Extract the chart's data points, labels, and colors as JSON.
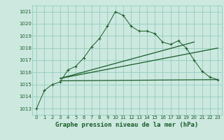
{
  "title": "Graphe pression niveau de la mer (hPa)",
  "bg_color": "#cce8df",
  "grid_color": "#88c8b8",
  "line_color": "#1a5c28",
  "xlim": [
    -0.5,
    23.5
  ],
  "ylim": [
    1012.5,
    1021.5
  ],
  "yticks": [
    1013,
    1014,
    1015,
    1016,
    1017,
    1018,
    1019,
    1020,
    1021
  ],
  "xticks": [
    0,
    1,
    2,
    3,
    4,
    5,
    6,
    7,
    8,
    9,
    10,
    11,
    12,
    13,
    14,
    15,
    16,
    17,
    18,
    19,
    20,
    21,
    22,
    23
  ],
  "line1_x": [
    0,
    1,
    2,
    3,
    4,
    5,
    6,
    7,
    8,
    9,
    10,
    11,
    12,
    13,
    14,
    15,
    16,
    17,
    18,
    19,
    20,
    21,
    22,
    23
  ],
  "line1_y": [
    1013.0,
    1014.5,
    1015.0,
    1015.2,
    1016.2,
    1016.5,
    1017.2,
    1018.1,
    1018.8,
    1019.8,
    1021.0,
    1020.7,
    1019.8,
    1019.4,
    1019.4,
    1019.2,
    1018.5,
    1018.3,
    1018.6,
    1018.0,
    1017.0,
    1016.1,
    1015.6,
    1015.4
  ],
  "line2_x": [
    3,
    23
  ],
  "line2_y": [
    1015.5,
    1018.0
  ],
  "line3_x": [
    3,
    20
  ],
  "line3_y": [
    1015.5,
    1018.5
  ],
  "line4_x": [
    3,
    23
  ],
  "line4_y": [
    1015.3,
    1015.4
  ],
  "xlabel_fontsize": 6.5,
  "tick_fontsize": 5.0,
  "ylabel_fontsize": 5.0
}
